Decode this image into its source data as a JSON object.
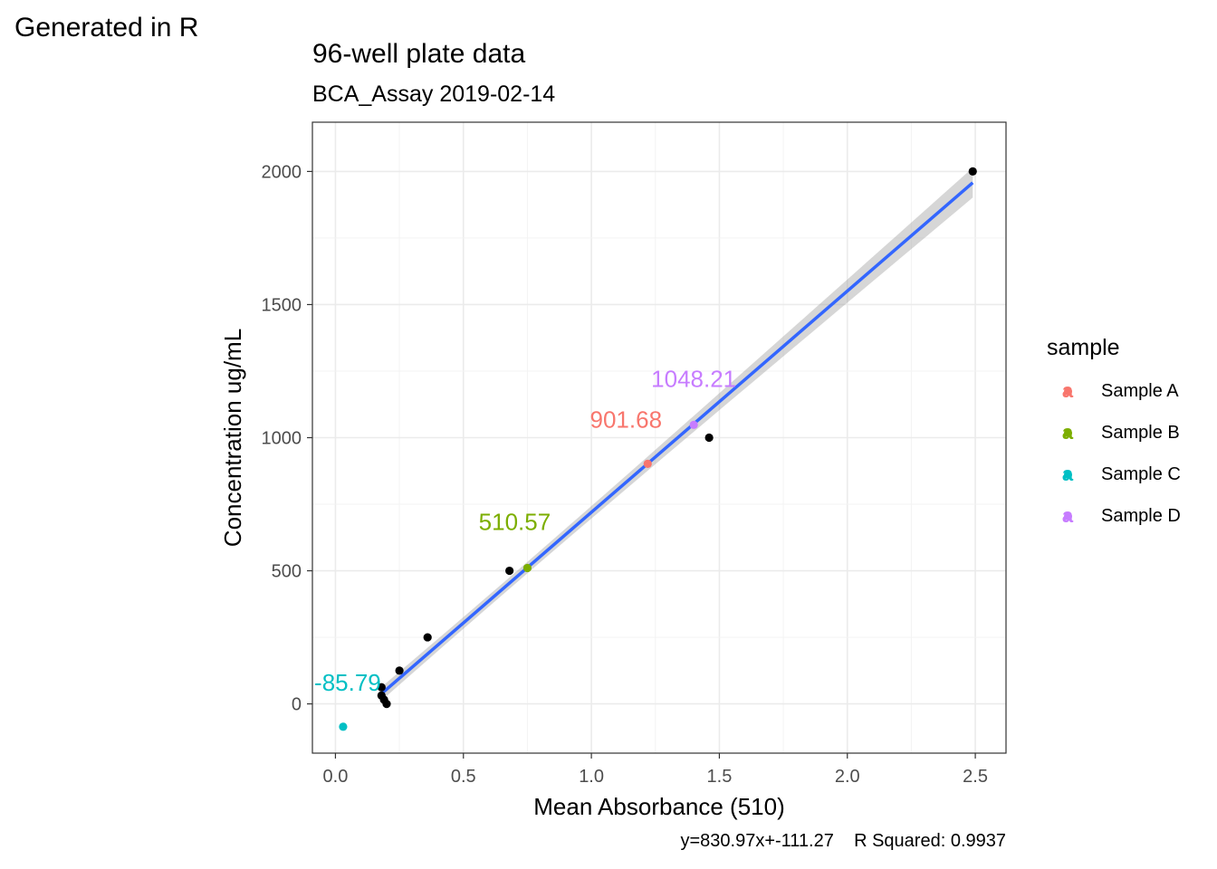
{
  "header": {
    "corner_text": "Generated in R"
  },
  "chart_data": {
    "type": "scatter",
    "title": "96-well plate data",
    "subtitle": "BCA_Assay 2019-02-14",
    "xlabel": "Mean Absorbance (510)",
    "ylabel": "Concentration ug/mL",
    "xlim": [
      -0.09,
      2.62
    ],
    "ylim": [
      -185,
      2185
    ],
    "x_ticks": [
      0.0,
      0.5,
      1.0,
      1.5,
      2.0,
      2.5
    ],
    "x_tick_labels": [
      "0.0",
      "0.5",
      "1.0",
      "1.5",
      "2.0",
      "2.5"
    ],
    "y_ticks": [
      0,
      500,
      1000,
      1500,
      2000
    ],
    "y_tick_labels": [
      "0",
      "500",
      "1000",
      "1500",
      "2000"
    ],
    "grid": true,
    "caption": "y=830.97x+-111.27    R Squared: 0.9937",
    "legend_title": "sample",
    "legend_position": "right",
    "standards": {
      "color": "#000000",
      "points": [
        {
          "x": 0.18,
          "y": 62.5
        },
        {
          "x": 0.18,
          "y": 31.25
        },
        {
          "x": 0.19,
          "y": 15.6
        },
        {
          "x": 0.2,
          "y": 0
        },
        {
          "x": 0.25,
          "y": 125
        },
        {
          "x": 0.36,
          "y": 250
        },
        {
          "x": 0.68,
          "y": 500
        },
        {
          "x": 1.46,
          "y": 1000
        },
        {
          "x": 2.49,
          "y": 2000
        }
      ]
    },
    "series": [
      {
        "name": "Sample A",
        "color": "#F8766D",
        "x": 1.22,
        "y": 901.68,
        "label": "901.68"
      },
      {
        "name": "Sample B",
        "color": "#7CAE00",
        "x": 0.75,
        "y": 510.57,
        "label": "510.57"
      },
      {
        "name": "Sample C",
        "color": "#00BFC4",
        "x": 0.03,
        "y": -85.79,
        "label": "-85.79"
      },
      {
        "name": "Sample D",
        "color": "#C77CFF",
        "x": 1.4,
        "y": 1048.21,
        "label": "1048.21"
      }
    ],
    "fit_line": {
      "color": "#3366FF",
      "x_start": 0.18,
      "x_end": 2.49,
      "slope": 830.97,
      "intercept": -111.27,
      "ci_color": "#999999"
    },
    "legend_glyph": "a"
  }
}
